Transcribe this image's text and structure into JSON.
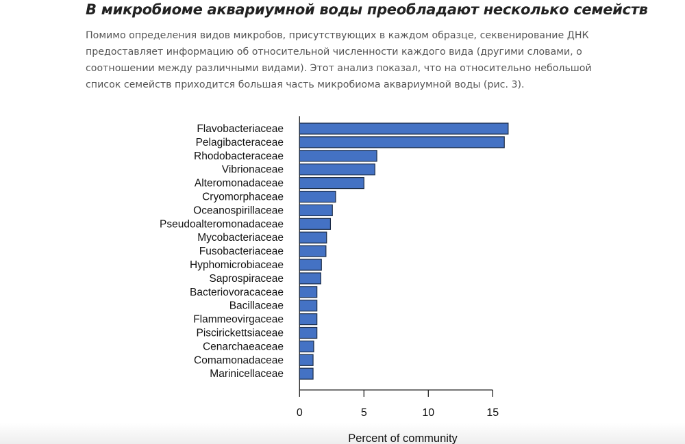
{
  "article": {
    "title": "В микробиоме аквариумной воды преобладают несколько семейств",
    "paragraph": "Помимо определения видов микробов, присутствующих в каждом образце, секвенирование ДНК предоставляет информацию об относительной численности каждого вида (другими словами, о соотношении между различными видами). Этот анализ показал, что на относительно небольшой список семейств приходится большая часть микробиома аквариумной воды (рис. 3)."
  },
  "chart_data": {
    "type": "bar",
    "orientation": "horizontal",
    "categories": [
      "Flavobacteriaceae",
      "Pelagibacteraceae",
      "Rhodobacteraceae",
      "Vibrionaceae",
      "Alteromonadaceae",
      "Cryomorphaceae",
      "Oceanospirillaceae",
      "Pseudoalteromonadaceae",
      "Mycobacteriaceae",
      "Fusobacteriaceae",
      "Hyphomicrobiaceae",
      "Saprospiraceae",
      "Bacteriovoracaceae",
      "Bacillaceae",
      "Flammeovirgaceae",
      "Piscirickettsiaceae",
      "Cenarchaeaceae",
      "Comamonadaceae",
      "Marinicellaceae"
    ],
    "values": [
      16.2,
      15.9,
      6.0,
      5.85,
      5.0,
      2.8,
      2.55,
      2.4,
      2.1,
      2.05,
      1.7,
      1.65,
      1.35,
      1.35,
      1.35,
      1.35,
      1.1,
      1.05,
      1.05
    ],
    "xlabel": "Percent of community",
    "xlim": [
      0,
      16.5
    ],
    "xticks": [
      "0",
      "5",
      "10",
      "15"
    ],
    "grid": false,
    "bar_color": "#4472c4",
    "edge_color": "#1a2a44"
  }
}
